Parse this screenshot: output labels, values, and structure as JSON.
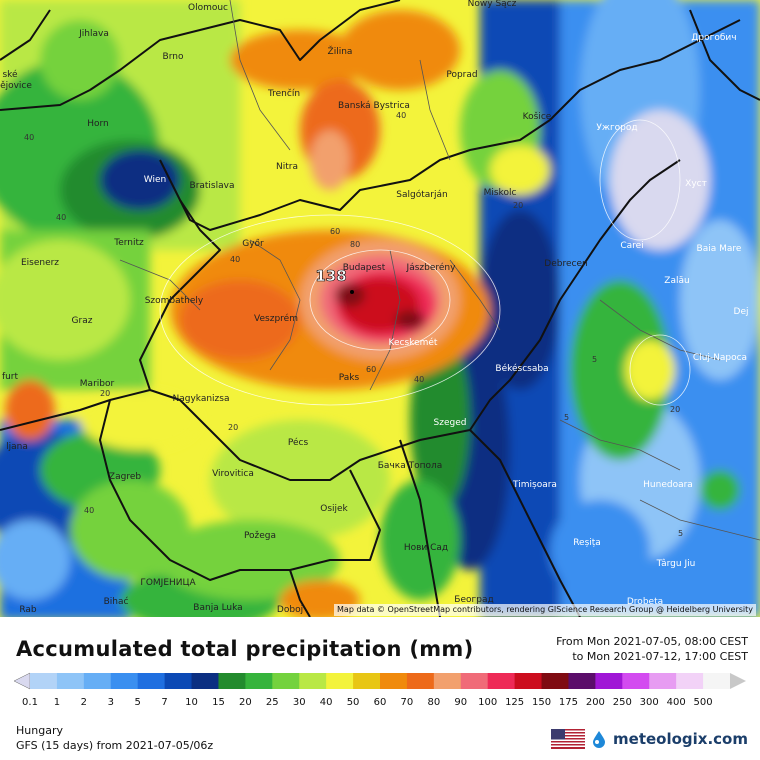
{
  "map": {
    "region": "Hungary",
    "attribution": "Map data © OpenStreetMap contributors, rendering GIScience Research Group @ Heidelberg University",
    "cities": [
      {
        "name": "Olomouc"
      },
      {
        "name": "Nowy Sącz"
      },
      {
        "name": "Дрогобич"
      },
      {
        "name": "Jihlava"
      },
      {
        "name": "Brno"
      },
      {
        "name": "Žilina"
      },
      {
        "name": "Poprad"
      },
      {
        "name": "ské"
      },
      {
        "name": "ějovice"
      },
      {
        "name": "Trenčín"
      },
      {
        "name": "Banská Bystrica"
      },
      {
        "name": "Košice"
      },
      {
        "name": "Ужгород"
      },
      {
        "name": "Horn"
      },
      {
        "name": "Wien"
      },
      {
        "name": "Bratislava"
      },
      {
        "name": "Nitra"
      },
      {
        "name": "Salgótarján"
      },
      {
        "name": "Miskolc"
      },
      {
        "name": "Хуст"
      },
      {
        "name": "Ternitz"
      },
      {
        "name": "Győr"
      },
      {
        "name": "Carei"
      },
      {
        "name": "Baia Mare"
      },
      {
        "name": "Eisenerz"
      },
      {
        "name": "Budapest"
      },
      {
        "name": "Jászberény"
      },
      {
        "name": "Debrecen"
      },
      {
        "name": "Szombathely"
      },
      {
        "name": "Zalău"
      },
      {
        "name": "Graz"
      },
      {
        "name": "Veszprém"
      },
      {
        "name": "Kecskemét"
      },
      {
        "name": "Cluj-Napoca"
      },
      {
        "name": "Dej"
      },
      {
        "name": "furt"
      },
      {
        "name": "Maribor"
      },
      {
        "name": "Paks"
      },
      {
        "name": "Békéscsaba"
      },
      {
        "name": "Nagykanizsa"
      },
      {
        "name": "Szeged"
      },
      {
        "name": "ljana"
      },
      {
        "name": "Pécs"
      },
      {
        "name": "Zagreb"
      },
      {
        "name": "Virovitica"
      },
      {
        "name": "Бачка Топола"
      },
      {
        "name": "Timișoara"
      },
      {
        "name": "Hunedoara"
      },
      {
        "name": "Osijek"
      },
      {
        "name": "Požega"
      },
      {
        "name": "Нови Сад"
      },
      {
        "name": "Reșița"
      },
      {
        "name": "Târgu Jiu"
      },
      {
        "name": "Bihać"
      },
      {
        "name": "ГОМЈЕНИЦА"
      },
      {
        "name": "Banja Luka"
      },
      {
        "name": "Doboj"
      },
      {
        "name": "Београд"
      },
      {
        "name": "Drobeta"
      },
      {
        "name": "Rab"
      }
    ],
    "isolines": [
      "138",
      "80",
      "60",
      "60",
      "40",
      "40",
      "40",
      "40",
      "40",
      "40",
      "20",
      "20",
      "20",
      "20",
      "5",
      "5",
      "5"
    ]
  },
  "legend": {
    "title": "Accumulated total precipitation (mm)",
    "from": "From Mon 2021-07-05, 08:00 CEST",
    "to": "to Mon 2021-07-12, 17:00 CEST",
    "ticks": [
      "0.1",
      "1",
      "2",
      "3",
      "5",
      "7",
      "10",
      "15",
      "20",
      "25",
      "30",
      "40",
      "50",
      "60",
      "70",
      "80",
      "90",
      "100",
      "125",
      "150",
      "175",
      "200",
      "250",
      "300",
      "400",
      "500"
    ],
    "colors": [
      "#d9d9ef",
      "#b2d3f7",
      "#8ec4f7",
      "#66aef5",
      "#3a8ff0",
      "#1f6fe0",
      "#0b49b5",
      "#0b2f82",
      "#238b2e",
      "#36b43c",
      "#74d23e",
      "#b9e845",
      "#f3f33b",
      "#e8c614",
      "#f08a0c",
      "#ed6a1a",
      "#f2a06d",
      "#f06b78",
      "#ee2a57",
      "#cc0d1e",
      "#7f0b12",
      "#5b0d6a",
      "#a016d6",
      "#d34bf0",
      "#e79cf2",
      "#f2d2f7",
      "#f5f5f5",
      "#c8c8c8"
    ]
  },
  "footer": {
    "region": "Hungary",
    "model": "GFS (15 days) from  2021-07-05/06z",
    "brand": "meteologix.com"
  }
}
